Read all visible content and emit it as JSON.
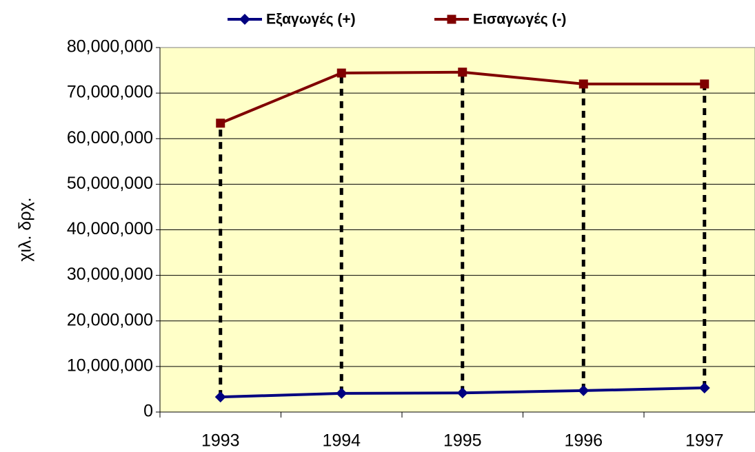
{
  "chart_data": {
    "type": "line",
    "y_label": "χιλ. δρχ.",
    "categories": [
      "1993",
      "1994",
      "1995",
      "1996",
      "1997"
    ],
    "series": [
      {
        "name": "Εξαγωγές (+)",
        "color": "#000080",
        "marker": "diamond",
        "values": [
          3300000,
          4100000,
          4200000,
          4700000,
          5300000
        ]
      },
      {
        "name": "Εισαγωγές (-)",
        "color": "#800000",
        "marker": "square",
        "values": [
          63400000,
          74400000,
          74600000,
          72000000,
          72000000
        ]
      }
    ],
    "ylim": [
      0,
      80000000
    ],
    "yticks": [
      0,
      {
        "value": 10000000,
        "label": "10,000,000"
      },
      {
        "value": 20000000,
        "label": "20,000,000"
      },
      {
        "value": 30000000,
        "label": "30,000,000"
      },
      {
        "value": 40000000,
        "label": "40,000,000"
      },
      {
        "value": 50000000,
        "label": "50,000,000"
      },
      {
        "value": 60000000,
        "label": "60,000,000"
      },
      {
        "value": 70000000,
        "label": "70,000,000"
      },
      {
        "value": 80000000,
        "label": "80,000,000"
      }
    ],
    "grid": true,
    "drop_lines": true,
    "legend": "top"
  }
}
